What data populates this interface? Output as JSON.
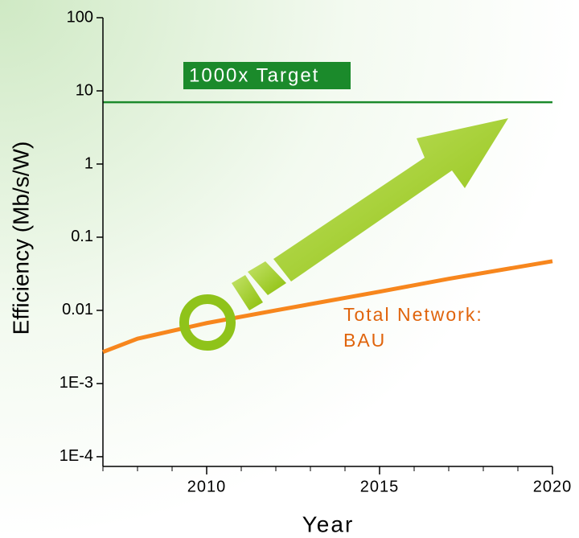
{
  "chart_data": {
    "type": "line",
    "xlabel": "Year",
    "ylabel": "Efficiency (Mb/s/W)",
    "x": [
      2007,
      2008,
      2010,
      2012,
      2015,
      2017,
      2020
    ],
    "series": [
      {
        "color": "#f7861d",
        "values": [
          0.0027,
          0.0041,
          0.0067,
          0.01,
          0.018,
          0.027,
          0.047
        ]
      }
    ],
    "xlim": [
      2007,
      2020
    ],
    "xticks": [
      2010,
      2015,
      2020
    ],
    "ylim": [
      7e-05,
      100
    ],
    "yticks": [
      100,
      10,
      1,
      0.1,
      0.01,
      {
        "value": 0.001,
        "label": "1E-3"
      },
      {
        "value": 0.0001,
        "label": "1E-4"
      }
    ],
    "log_y": true,
    "hlines": [
      {
        "value": 7,
        "label": "1000x Target",
        "color": "#1b8a2b"
      }
    ],
    "annotations": [
      "Total Network:",
      "BAU"
    ]
  }
}
